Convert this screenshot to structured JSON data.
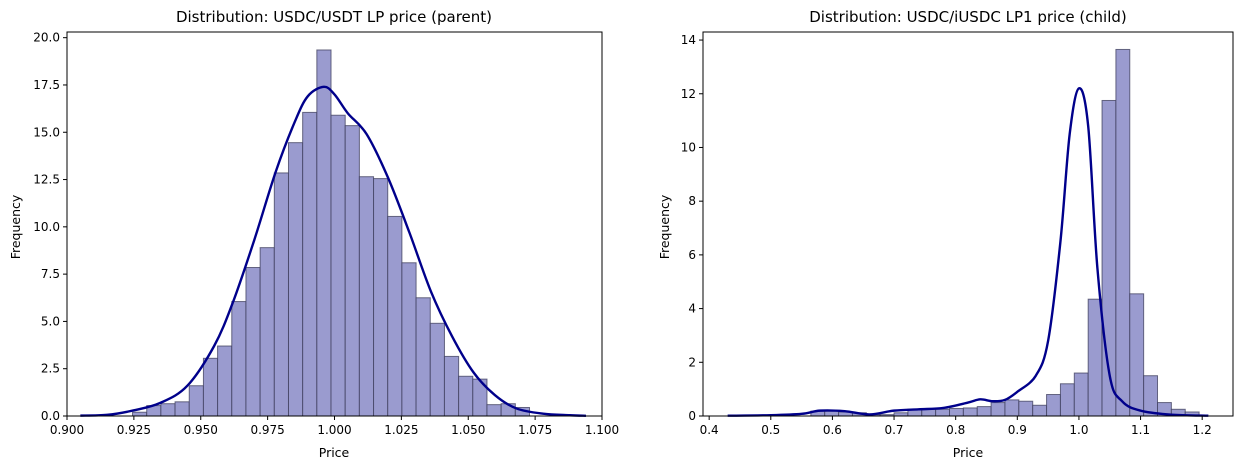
{
  "chart_data": [
    {
      "type": "bar",
      "title": "Distribution: USDC/USDT LP price (parent)",
      "xlabel": "Price",
      "ylabel": "Frequency",
      "xlim": [
        0.9,
        1.1
      ],
      "ylim": [
        0,
        20.3
      ],
      "xticks": [
        0.9,
        0.925,
        0.95,
        0.975,
        1.0,
        1.025,
        1.05,
        1.075,
        1.1
      ],
      "xtick_labels": [
        "0.900",
        "0.925",
        "0.950",
        "0.975",
        "1.000",
        "1.025",
        "1.050",
        "1.075",
        "1.100"
      ],
      "yticks": [
        0,
        2.5,
        5,
        7.5,
        10,
        12.5,
        15,
        17.5,
        20
      ],
      "ytick_labels": [
        "0.0",
        "2.5",
        "5.0",
        "7.5",
        "10.0",
        "12.5",
        "15.0",
        "17.5",
        "20.0"
      ],
      "grid": false,
      "bar_color": "#9a9bcf",
      "kde_color": "#00008b",
      "bins": {
        "start": 0.9245,
        "width": 0.0053,
        "values": [
          0.2,
          0.55,
          0.65,
          0.75,
          1.6,
          3.05,
          3.7,
          6.05,
          7.85,
          8.9,
          12.85,
          14.45,
          16.05,
          19.35,
          15.9,
          15.35,
          12.65,
          12.55,
          10.55,
          8.1,
          6.25,
          4.9,
          3.15,
          2.1,
          1.95,
          0.6,
          0.65,
          0.45
        ]
      },
      "kde": {
        "x": [
          0.905,
          0.915,
          0.925,
          0.935,
          0.945,
          0.955,
          0.962,
          0.97,
          0.978,
          0.985,
          0.99,
          0.996,
          1.0,
          1.005,
          1.012,
          1.02,
          1.028,
          1.036,
          1.044,
          1.052,
          1.06,
          1.068,
          1.078,
          1.088,
          1.094
        ],
        "y": [
          0.02,
          0.06,
          0.3,
          0.7,
          1.6,
          3.7,
          6.0,
          9.3,
          12.9,
          15.5,
          16.9,
          17.4,
          17.0,
          16.0,
          14.9,
          12.6,
          9.7,
          6.6,
          4.2,
          2.3,
          1.1,
          0.4,
          0.12,
          0.04,
          0.01
        ]
      }
    },
    {
      "type": "bar",
      "title": "Distribution: USDC/iUSDC LP1 price (child)",
      "xlabel": "Price",
      "ylabel": "Frequency",
      "xlim": [
        0.39,
        1.25
      ],
      "ylim": [
        0,
        14.3
      ],
      "xticks": [
        0.4,
        0.5,
        0.6,
        0.7,
        0.8,
        0.9,
        1.0,
        1.1,
        1.2
      ],
      "xtick_labels": [
        "0.4",
        "0.5",
        "0.6",
        "0.7",
        "0.8",
        "0.9",
        "1.0",
        "1.1",
        "1.2"
      ],
      "yticks": [
        0,
        2,
        4,
        6,
        8,
        10,
        12,
        14
      ],
      "ytick_labels": [
        "0",
        "2",
        "4",
        "6",
        "8",
        "10",
        "12",
        "14"
      ],
      "grid": false,
      "bar_color": "#9a9bcf",
      "kde_color": "#00008b",
      "bins": {
        "start": 0.565,
        "width": 0.0225,
        "values": [
          0.18,
          0.18,
          0.15,
          0.12,
          0.05,
          0.05,
          0.12,
          0.25,
          0.25,
          0.25,
          0.28,
          0.3,
          0.35,
          0.5,
          0.6,
          0.55,
          0.4,
          0.8,
          1.2,
          1.6,
          4.35,
          11.75,
          13.65,
          4.55,
          1.5,
          0.5,
          0.25,
          0.15
        ]
      },
      "kde": {
        "x": [
          0.43,
          0.5,
          0.55,
          0.58,
          0.62,
          0.66,
          0.7,
          0.74,
          0.78,
          0.82,
          0.84,
          0.86,
          0.88,
          0.9,
          0.93,
          0.95,
          0.97,
          0.985,
          1.0,
          1.015,
          1.03,
          1.05,
          1.07,
          1.1,
          1.15,
          1.21
        ],
        "y": [
          0.01,
          0.03,
          0.08,
          0.2,
          0.18,
          0.06,
          0.2,
          0.25,
          0.3,
          0.5,
          0.62,
          0.55,
          0.6,
          0.9,
          1.5,
          2.8,
          6.5,
          10.5,
          12.2,
          10.8,
          5.5,
          1.5,
          0.55,
          0.2,
          0.05,
          0.01
        ]
      }
    }
  ]
}
